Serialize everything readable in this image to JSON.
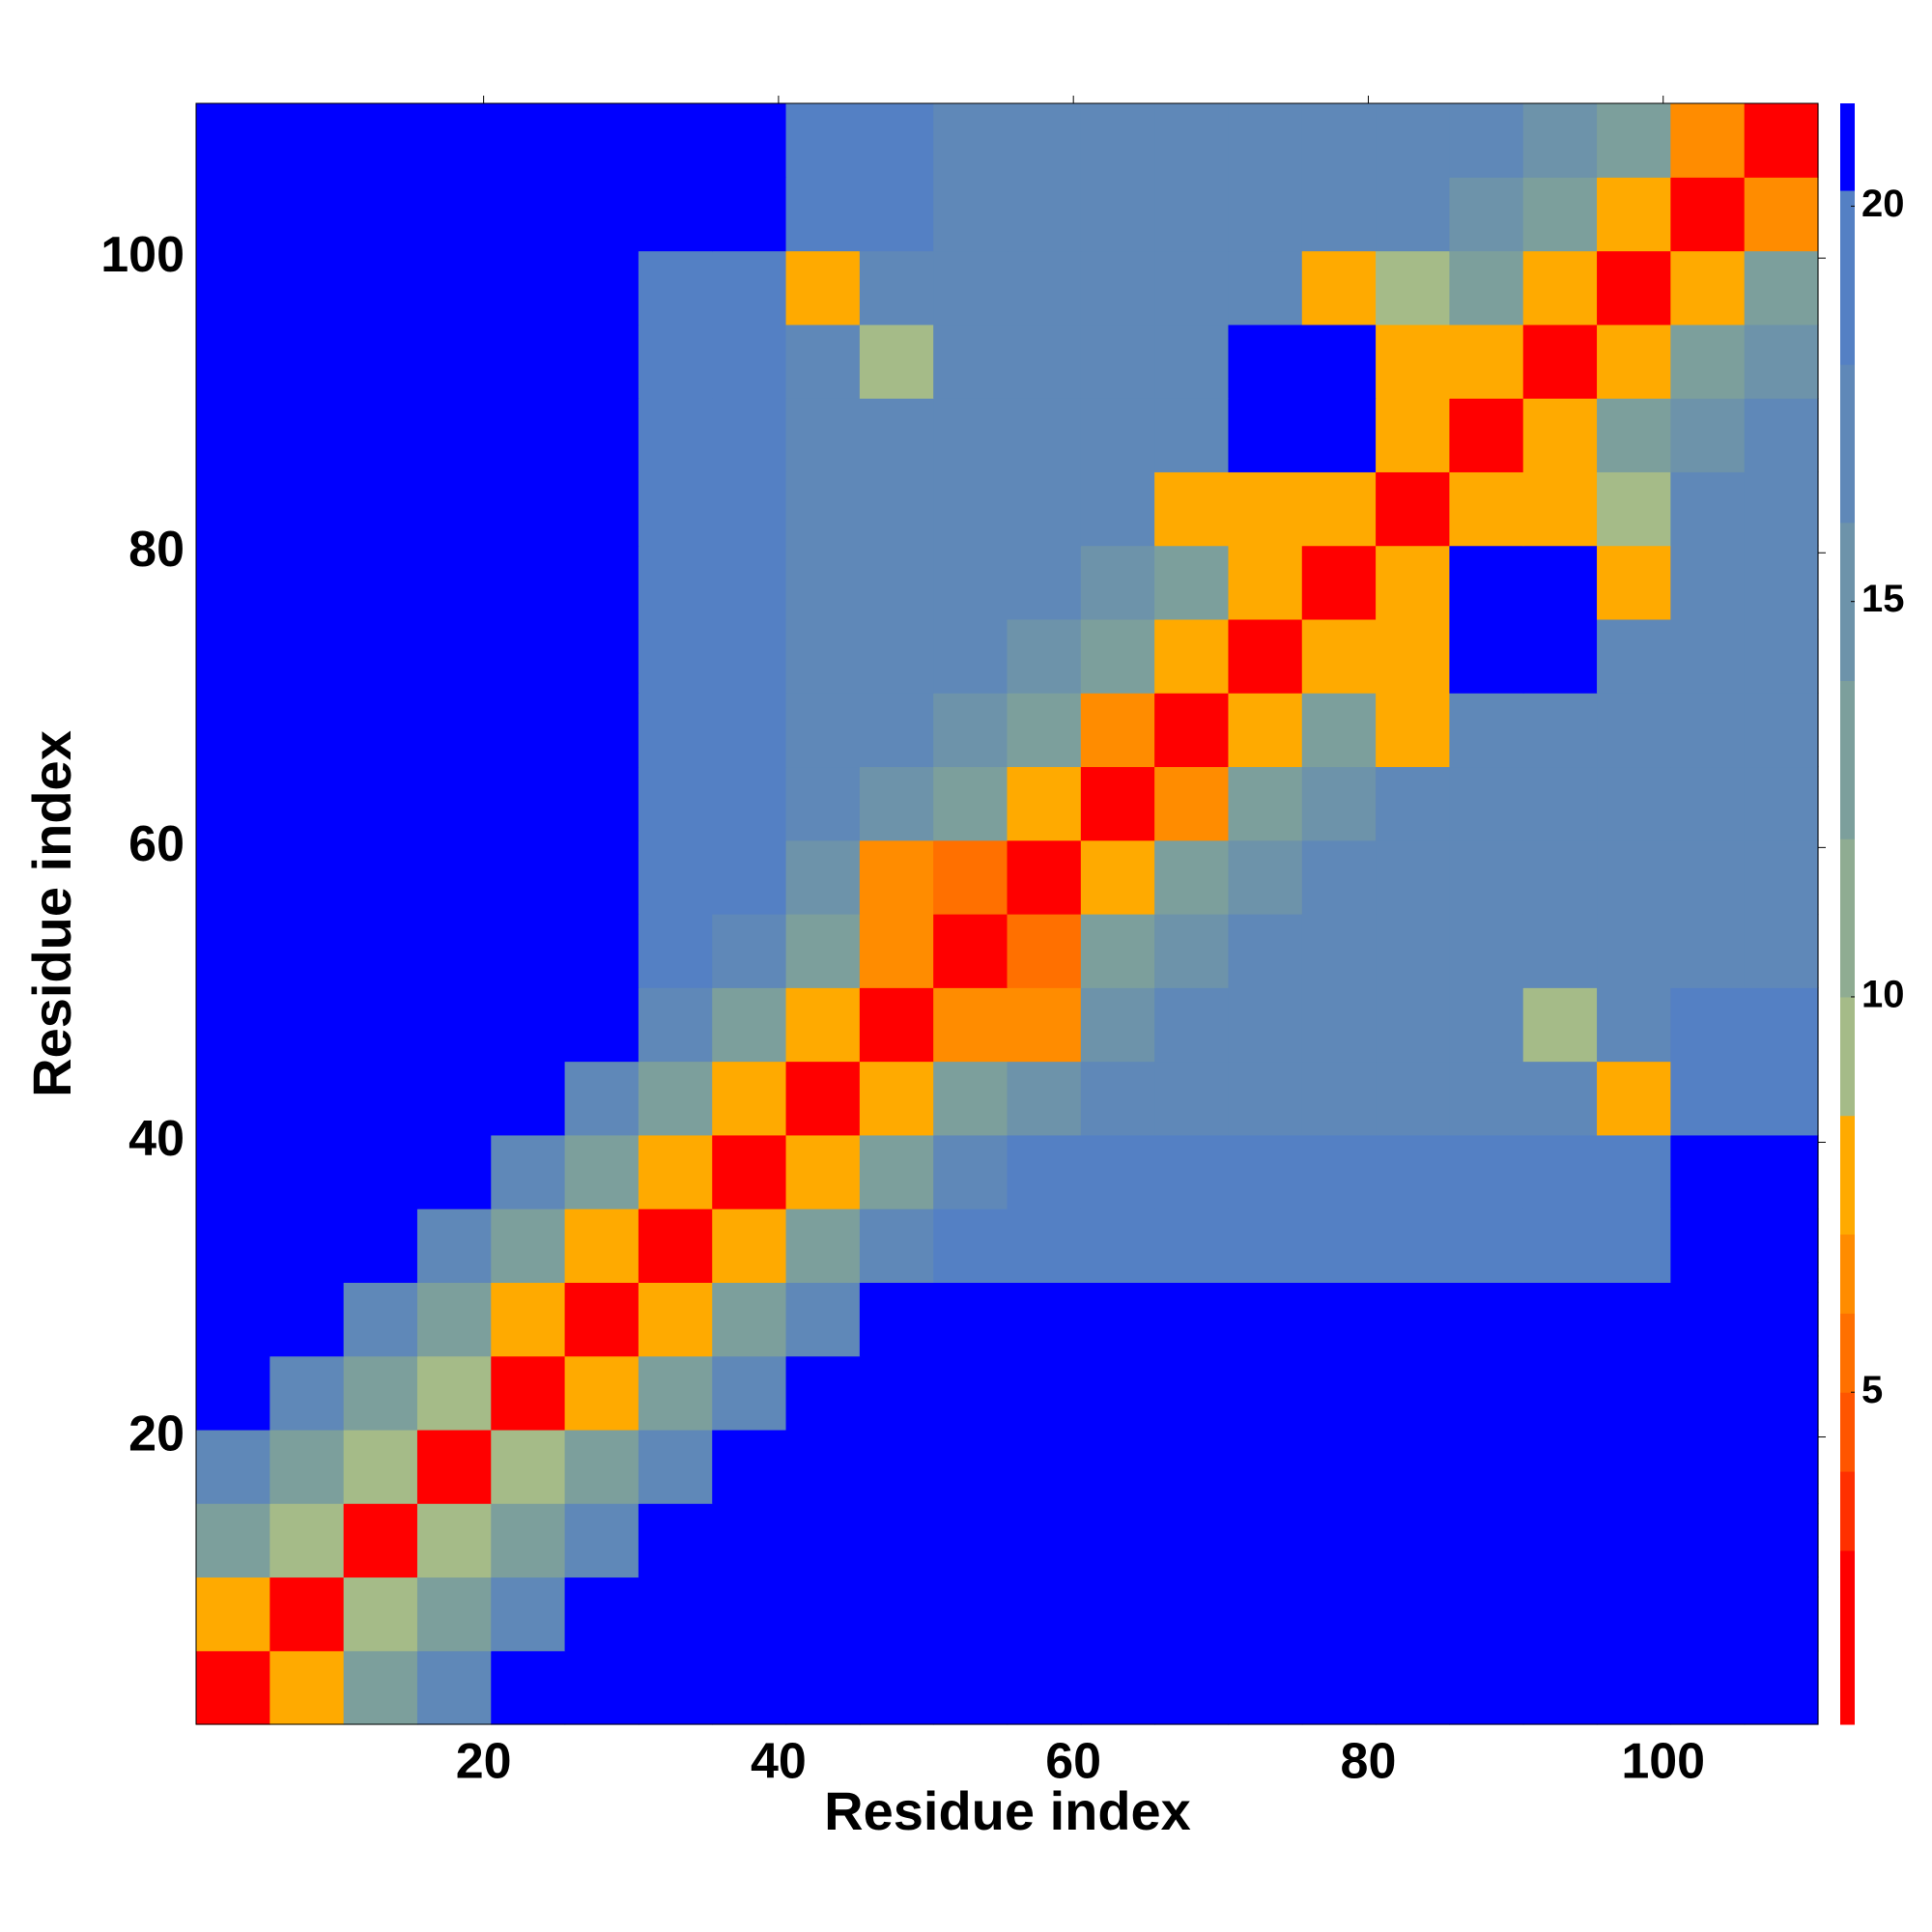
{
  "chart_data": {
    "type": "heatmap",
    "x_label": "Residue index",
    "y_label": "Residue index",
    "x": [
      3,
      8,
      13,
      18,
      23,
      28,
      33,
      38,
      43,
      48,
      53,
      58,
      63,
      68,
      73,
      78,
      83,
      88,
      93,
      98,
      103,
      108
    ],
    "y": [
      3,
      8,
      13,
      18,
      23,
      28,
      33,
      38,
      43,
      48,
      53,
      58,
      63,
      68,
      73,
      78,
      83,
      88,
      93,
      98,
      103,
      108
    ],
    "z": [
      [
        2.5,
        8,
        13,
        17,
        21,
        21,
        21,
        21,
        21,
        21,
        21,
        21,
        21,
        21,
        21,
        21,
        21,
        21,
        21,
        21,
        21,
        21
      ],
      [
        8,
        2.5,
        9,
        13,
        17,
        21,
        21,
        21,
        21,
        21,
        21,
        21,
        21,
        21,
        21,
        21,
        21,
        21,
        21,
        21,
        21,
        21
      ],
      [
        13,
        9,
        2.5,
        9,
        13,
        17,
        21,
        21,
        21,
        21,
        21,
        21,
        21,
        21,
        21,
        21,
        21,
        21,
        21,
        21,
        21,
        21
      ],
      [
        17,
        13,
        9,
        2.5,
        9,
        13,
        17,
        21,
        21,
        21,
        21,
        21,
        21,
        21,
        21,
        21,
        21,
        21,
        21,
        21,
        21,
        21
      ],
      [
        21,
        17,
        13,
        9,
        2.5,
        7,
        13,
        17,
        21,
        21,
        21,
        21,
        21,
        21,
        21,
        21,
        21,
        21,
        21,
        21,
        21,
        21
      ],
      [
        21,
        21,
        17,
        13,
        7,
        2.5,
        7,
        13,
        17,
        21,
        21,
        21,
        21,
        21,
        21,
        21,
        21,
        21,
        21,
        21,
        21,
        21
      ],
      [
        21,
        21,
        21,
        17,
        13,
        7,
        2.5,
        7,
        12,
        16,
        20,
        20,
        20,
        20,
        20,
        20,
        20,
        20,
        20,
        20,
        21,
        21
      ],
      [
        21,
        21,
        21,
        21,
        17,
        13,
        7,
        2.5,
        8,
        12,
        17,
        18,
        18,
        18,
        18,
        18,
        18,
        18,
        18,
        18,
        21,
        21
      ],
      [
        21,
        21,
        21,
        21,
        21,
        17,
        12,
        8,
        2.5,
        8,
        12,
        14,
        16,
        16,
        16,
        16,
        16,
        16,
        16,
        8,
        18,
        18
      ],
      [
        21,
        21,
        21,
        21,
        21,
        21,
        16,
        12,
        8,
        2.5,
        6,
        6,
        14,
        16,
        16,
        16,
        16,
        16,
        9,
        16,
        18,
        18
      ],
      [
        21,
        21,
        21,
        21,
        21,
        21,
        20,
        17,
        12,
        6,
        2.5,
        5,
        12,
        14,
        16,
        16,
        16,
        16,
        16,
        16,
        16,
        16
      ],
      [
        21,
        21,
        21,
        21,
        21,
        21,
        20,
        18,
        14,
        6,
        5,
        2.5,
        7,
        12,
        14,
        16,
        16,
        16,
        16,
        16,
        16,
        16
      ],
      [
        21,
        21,
        21,
        21,
        21,
        21,
        20,
        18,
        16,
        14,
        12,
        7,
        2.5,
        6,
        12,
        14,
        16,
        16,
        16,
        16,
        16,
        16
      ],
      [
        21,
        21,
        21,
        21,
        21,
        21,
        20,
        18,
        16,
        16,
        14,
        12,
        6,
        2.5,
        8,
        12,
        7,
        16,
        16,
        16,
        16,
        16
      ],
      [
        21,
        21,
        21,
        21,
        21,
        21,
        20,
        18,
        16,
        16,
        16,
        14,
        12,
        8,
        2.5,
        8,
        7,
        21,
        21,
        16,
        16,
        16
      ],
      [
        21,
        21,
        21,
        21,
        21,
        21,
        20,
        18,
        16,
        16,
        16,
        16,
        14,
        12,
        8,
        2.5,
        8,
        21,
        21,
        7,
        16,
        16
      ],
      [
        21,
        21,
        21,
        21,
        21,
        21,
        20,
        18,
        16,
        16,
        16,
        16,
        16,
        7,
        7,
        8,
        2.5,
        8,
        7,
        9,
        16,
        16
      ],
      [
        21,
        21,
        21,
        21,
        21,
        21,
        20,
        18,
        16,
        16,
        16,
        16,
        16,
        16,
        21,
        21,
        8,
        2.5,
        8,
        12,
        14,
        16
      ],
      [
        21,
        21,
        21,
        21,
        21,
        21,
        20,
        18,
        16,
        9,
        16,
        16,
        16,
        16,
        21,
        21,
        7,
        8,
        2.5,
        8,
        12,
        14
      ],
      [
        21,
        21,
        21,
        21,
        21,
        21,
        20,
        18,
        8,
        16,
        16,
        16,
        16,
        16,
        16,
        7,
        9,
        12,
        8,
        2.5,
        8,
        12
      ],
      [
        21,
        21,
        21,
        21,
        21,
        21,
        21,
        21,
        18,
        18,
        16,
        16,
        16,
        16,
        16,
        16,
        16,
        14,
        12,
        8,
        2.5,
        6
      ],
      [
        21,
        21,
        21,
        21,
        21,
        21,
        21,
        21,
        18,
        18,
        16,
        16,
        16,
        16,
        16,
        16,
        16,
        16,
        14,
        12,
        6,
        2.5
      ]
    ],
    "xlim": [
      0.5,
      110.5
    ],
    "ylim": [
      0.5,
      110.5
    ],
    "xticks": [
      20,
      40,
      60,
      80,
      100
    ],
    "yticks": [
      20,
      40,
      60,
      80,
      100
    ],
    "colorbar": {
      "lim": [
        0.8,
        21.3
      ],
      "ticks": [
        5,
        10,
        15,
        20
      ],
      "levels": [
        0.8,
        3,
        4,
        5,
        6,
        7,
        8.5,
        10,
        12,
        14,
        16,
        18,
        20.2,
        21.3
      ],
      "colors": [
        "#ff0000",
        "#ff3000",
        "#ff5500",
        "#ff7000",
        "#ff8c00",
        "#ffaa00",
        "#a5bb88",
        "#8fac92",
        "#7c9f9c",
        "#6d93aa",
        "#5f88b8",
        "#5480c4",
        "#0000ff"
      ]
    }
  }
}
